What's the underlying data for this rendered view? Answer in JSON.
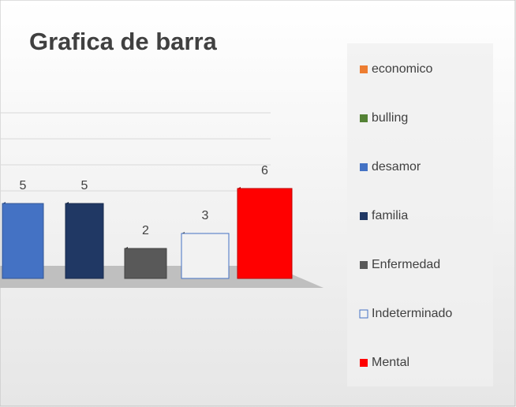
{
  "chart_data": {
    "type": "bar3d",
    "title": "Grafica de barra",
    "series": [
      {
        "name": "economico",
        "color": "#ed7d31",
        "values": [
          null
        ]
      },
      {
        "name": "bulling",
        "color": "#548235",
        "values": [
          null
        ]
      },
      {
        "name": "desamor",
        "color": "#4472c4",
        "values": [
          5
        ]
      },
      {
        "name": "familia",
        "color": "#203864",
        "values": [
          5
        ]
      },
      {
        "name": "Enfermedad",
        "color": "#595959",
        "values": [
          2
        ]
      },
      {
        "name": "Indeterminado",
        "color": "#f2f2f2",
        "values": [
          3
        ]
      },
      {
        "name": "Mental",
        "color": "#ff0000",
        "values": [
          6
        ]
      }
    ],
    "legend": "right"
  }
}
